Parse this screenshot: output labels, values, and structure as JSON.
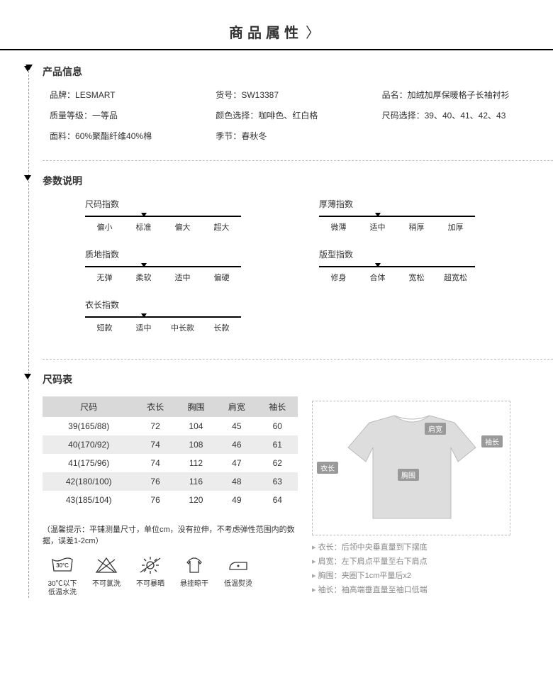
{
  "page_title": "商品属性",
  "sections": {
    "product_info": {
      "title": "产品信息",
      "items": [
        {
          "label": "品牌",
          "value": "LESMART"
        },
        {
          "label": "货号",
          "value": "SW13387"
        },
        {
          "label": "品名",
          "value": "加绒加厚保暖格子长袖衬衫"
        },
        {
          "label": "质量等级",
          "value": "一等品"
        },
        {
          "label": "颜色选择",
          "value": "咖啡色、红白格"
        },
        {
          "label": "尺码选择",
          "value": "39、40、41、42、43"
        },
        {
          "label": "面料",
          "value": "60%聚酯纤维40%棉"
        },
        {
          "label": "季节",
          "value": "春秋冬"
        }
      ]
    },
    "params": {
      "title": "参数说明",
      "blocks": [
        {
          "name": "尺码指数",
          "options": [
            "偏小",
            "标准",
            "偏大",
            "超大"
          ],
          "selected": 1
        },
        {
          "name": "厚薄指数",
          "options": [
            "微薄",
            "适中",
            "稍厚",
            "加厚"
          ],
          "selected": 1
        },
        {
          "name": "质地指数",
          "options": [
            "无弹",
            "柔软",
            "适中",
            "偏硬"
          ],
          "selected": 1
        },
        {
          "name": "版型指数",
          "options": [
            "修身",
            "合体",
            "宽松",
            "超宽松"
          ],
          "selected": 1
        },
        {
          "name": "衣长指数",
          "options": [
            "短款",
            "适中",
            "中长款",
            "长款"
          ],
          "selected": 1
        }
      ]
    },
    "size_table": {
      "title": "尺码表",
      "columns": [
        "尺码",
        "衣长",
        "胸围",
        "肩宽",
        "袖长"
      ],
      "rows": [
        [
          "39(165/88)",
          "72",
          "104",
          "45",
          "60"
        ],
        [
          "40(170/92)",
          "74",
          "108",
          "46",
          "61"
        ],
        [
          "41(175/96)",
          "74",
          "112",
          "47",
          "62"
        ],
        [
          "42(180/100)",
          "76",
          "116",
          "48",
          "63"
        ],
        [
          "43(185/104)",
          "76",
          "120",
          "49",
          "64"
        ]
      ],
      "tip": "（温馨提示：平铺测量尺寸，单位cm，没有拉伸，不考虑弹性范围内的数据，误差1-2cm）",
      "care": [
        {
          "label": "30℃以下\n低温水洗",
          "icon": "wash"
        },
        {
          "label": "不可氯洗",
          "icon": "nochloro"
        },
        {
          "label": "不可暴晒",
          "icon": "nosun"
        },
        {
          "label": "悬挂晾干",
          "icon": "hang"
        },
        {
          "label": "低温熨烫",
          "icon": "iron"
        }
      ],
      "diagram_labels": {
        "shoulder": "肩宽",
        "sleeve": "袖长",
        "length": "衣长",
        "chest": "胸围"
      },
      "guides": [
        "衣长：后领中央垂直量到下摆底",
        "肩宽：左下肩点平量至右下肩点",
        "胸围：夹圈下1cm平量后x2",
        "袖长：袖高端垂直量至袖口低端"
      ]
    }
  }
}
